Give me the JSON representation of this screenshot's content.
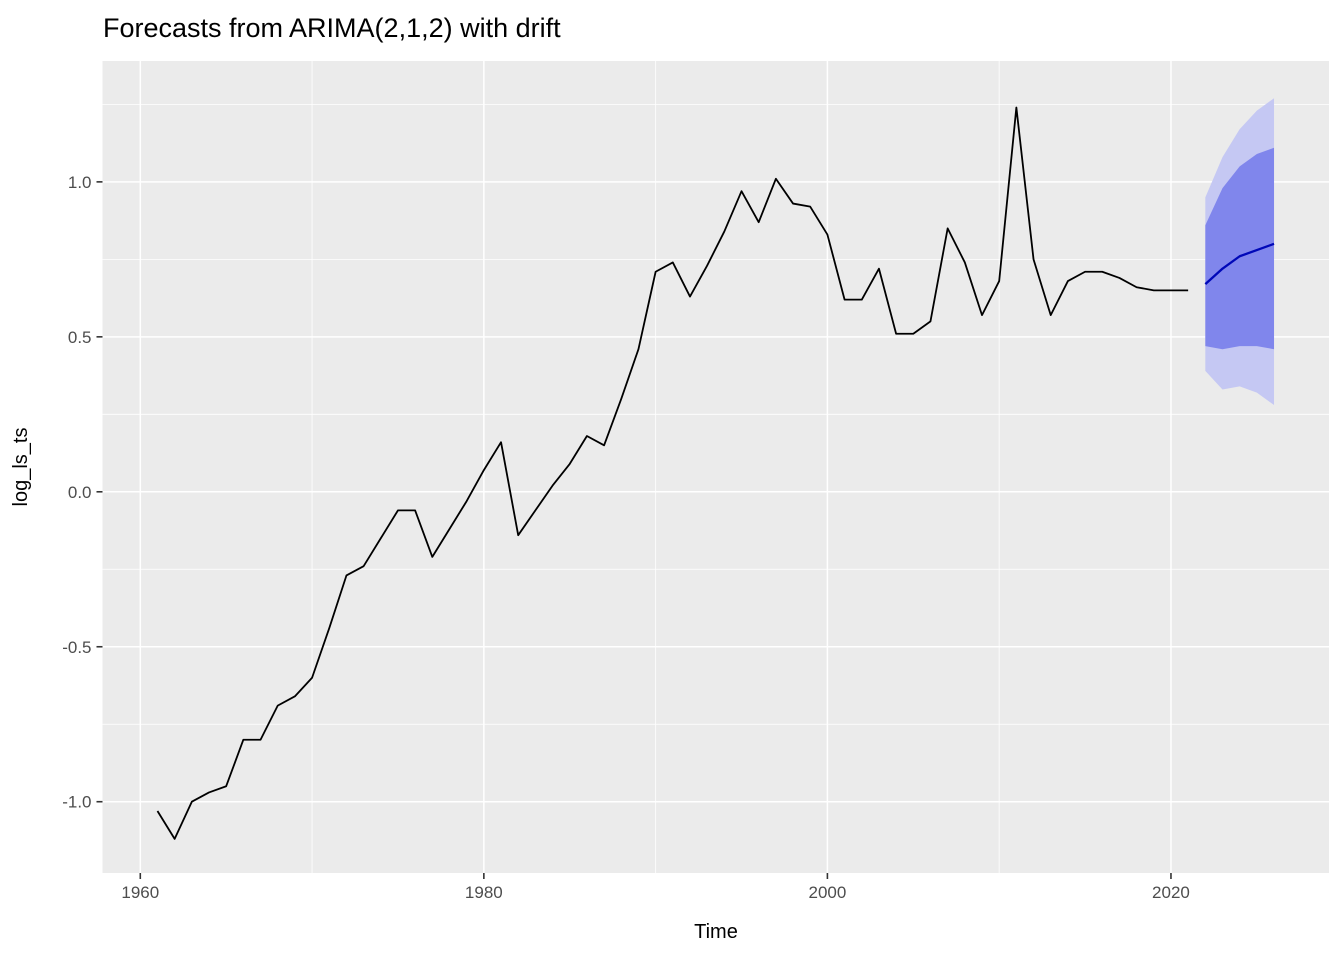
{
  "title": "Forecasts from ARIMA(2,1,2) with drift",
  "chart_data": {
    "type": "line",
    "title": "Forecasts from ARIMA(2,1,2) with drift",
    "xlabel": "Time",
    "ylabel": "log_ls_ts",
    "xlim": [
      1957.8,
      2029.2
    ],
    "ylim": [
      -1.23,
      1.39
    ],
    "grid": true,
    "x_ticks_major": [
      1960,
      1980,
      2000,
      2020
    ],
    "x_ticks_minor": [
      1970,
      1990,
      2010
    ],
    "y_ticks_major": [
      -1.0,
      -0.5,
      0.0,
      0.5,
      1.0
    ],
    "y_ticks_minor": [
      -0.75,
      -0.25,
      0.25,
      0.75,
      1.25
    ],
    "series": [
      {
        "name": "observed",
        "color": "#000000",
        "x": [
          1961,
          1962,
          1963,
          1964,
          1965,
          1966,
          1967,
          1968,
          1969,
          1970,
          1971,
          1972,
          1973,
          1974,
          1975,
          1976,
          1977,
          1978,
          1979,
          1980,
          1981,
          1982,
          1983,
          1984,
          1985,
          1986,
          1987,
          1988,
          1989,
          1990,
          1991,
          1992,
          1993,
          1994,
          1995,
          1996,
          1997,
          1998,
          1999,
          2000,
          2001,
          2002,
          2003,
          2004,
          2005,
          2006,
          2007,
          2008,
          2009,
          2010,
          2011,
          2012,
          2013,
          2014,
          2015,
          2016,
          2017,
          2018,
          2019,
          2020,
          2021
        ],
        "values": [
          -1.03,
          -1.12,
          -1.0,
          -0.97,
          -0.95,
          -0.8,
          -0.8,
          -0.69,
          -0.66,
          -0.6,
          -0.44,
          -0.27,
          -0.24,
          -0.15,
          -0.06,
          -0.06,
          -0.21,
          -0.12,
          -0.03,
          0.07,
          0.16,
          -0.14,
          -0.06,
          0.02,
          0.09,
          0.18,
          0.15,
          0.3,
          0.46,
          0.71,
          0.74,
          0.63,
          0.73,
          0.84,
          0.97,
          0.87,
          1.01,
          0.93,
          0.92,
          0.83,
          0.62,
          0.62,
          0.72,
          0.51,
          0.51,
          0.55,
          0.85,
          0.74,
          0.57,
          0.68,
          1.24,
          0.75,
          0.57,
          0.68,
          0.71,
          0.71,
          0.69,
          0.66,
          0.65,
          0.65,
          0.65
        ]
      },
      {
        "name": "forecast-mean",
        "color": "#0008b8",
        "x": [
          2022,
          2023,
          2024,
          2025,
          2026
        ],
        "values": [
          0.67,
          0.72,
          0.76,
          0.78,
          0.8
        ]
      }
    ],
    "bands": [
      {
        "name": "interval-95",
        "level": "95%",
        "color": "#c5c8f3",
        "x": [
          2022,
          2023,
          2024,
          2025,
          2026
        ],
        "upper": [
          0.95,
          1.08,
          1.17,
          1.23,
          1.27
        ],
        "lower": [
          0.39,
          0.33,
          0.34,
          0.32,
          0.28
        ]
      },
      {
        "name": "interval-80",
        "level": "80%",
        "color": "#8086ec",
        "x": [
          2022,
          2023,
          2024,
          2025,
          2026
        ],
        "upper": [
          0.86,
          0.98,
          1.05,
          1.09,
          1.11
        ],
        "lower": [
          0.47,
          0.46,
          0.47,
          0.47,
          0.46
        ]
      }
    ],
    "colors": {
      "panel_background": "#ebebeb",
      "gridline": "#ffffff",
      "tick_mark": "#333333",
      "tick_label": "#4d4d4d",
      "axis_title": "#000000",
      "observed_line": "#000000",
      "forecast_line": "#0008b8"
    },
    "legend_position": "none"
  }
}
